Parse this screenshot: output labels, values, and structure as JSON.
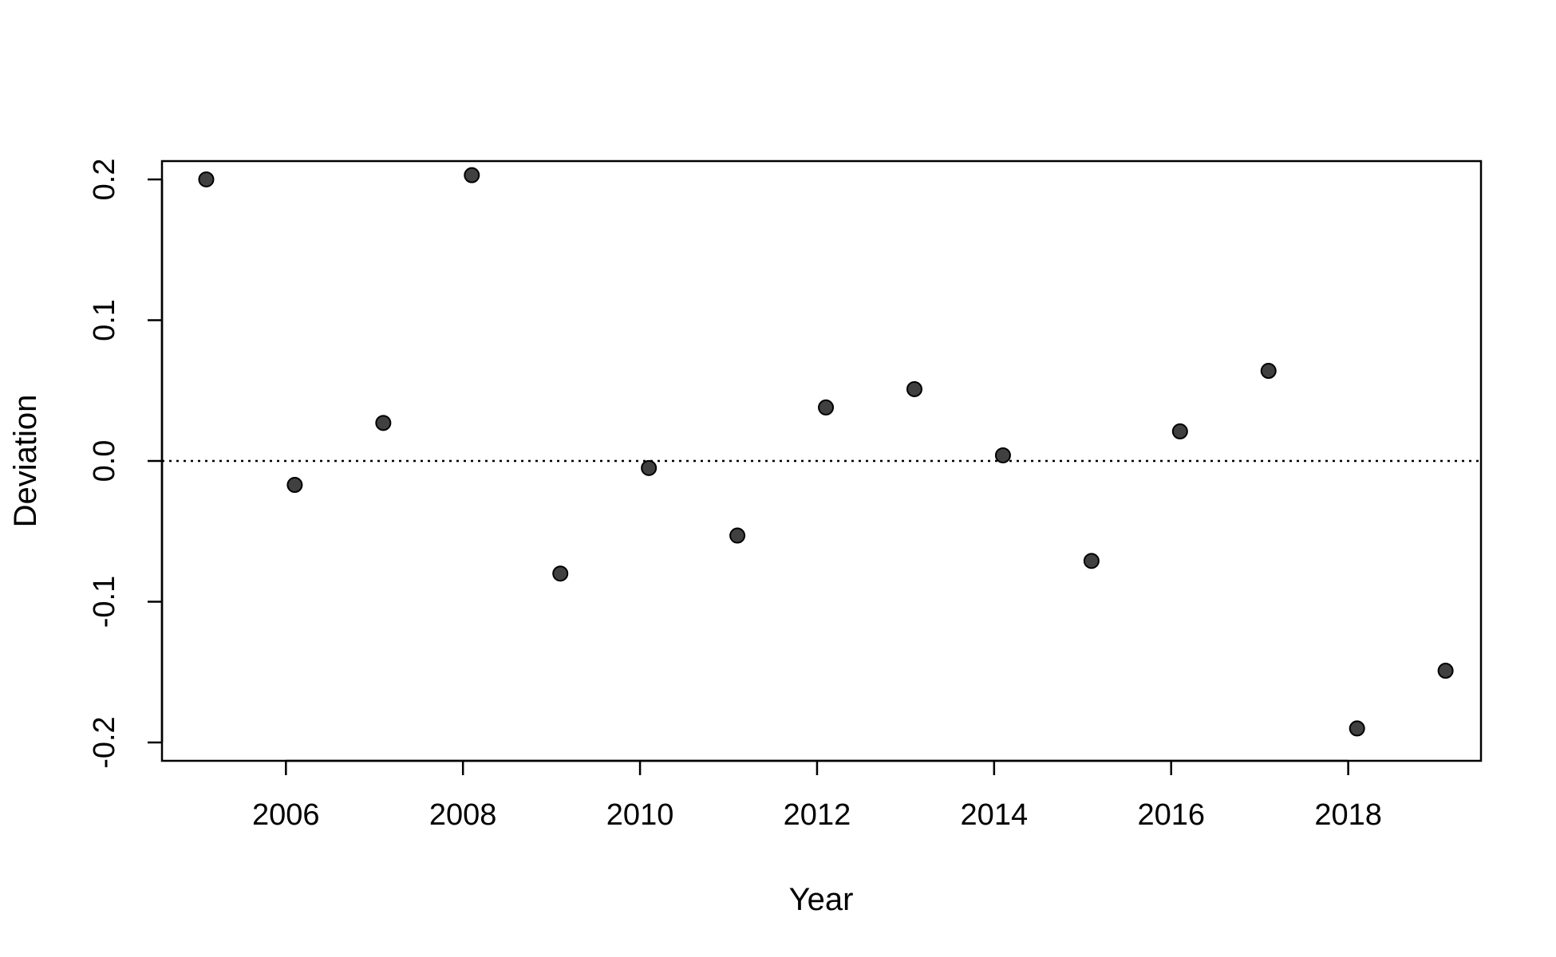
{
  "chart_data": {
    "type": "scatter",
    "title": "",
    "xlabel": "Year",
    "ylabel": "Deviation",
    "xlim": [
      2004.6,
      2019.5
    ],
    "ylim": [
      -0.213,
      0.213
    ],
    "x_ticks": [
      2006,
      2008,
      2010,
      2012,
      2014,
      2016,
      2018
    ],
    "x_tick_labels": [
      "2006",
      "2008",
      "2010",
      "2012",
      "2014",
      "2016",
      "2018"
    ],
    "y_ticks": [
      -0.2,
      -0.1,
      0.0,
      0.1,
      0.2
    ],
    "y_tick_labels": [
      "-0.2",
      "-0.1",
      "0.0",
      "0.1",
      "0.2"
    ],
    "reference_line": {
      "y": 0.0,
      "style": "dotted"
    },
    "grid": false,
    "point_color": "#404040",
    "series": [
      {
        "x": [
          2005.1,
          2006.1,
          2007.1,
          2008.1,
          2009.1,
          2010.1,
          2011.1,
          2012.1,
          2013.1,
          2014.1,
          2015.1,
          2016.1,
          2017.1,
          2018.1,
          2019.1
        ],
        "y": [
          0.2,
          -0.017,
          0.027,
          0.203,
          -0.08,
          -0.005,
          -0.053,
          0.038,
          0.051,
          0.004,
          -0.071,
          0.021,
          0.064,
          -0.19,
          -0.149
        ]
      }
    ]
  }
}
